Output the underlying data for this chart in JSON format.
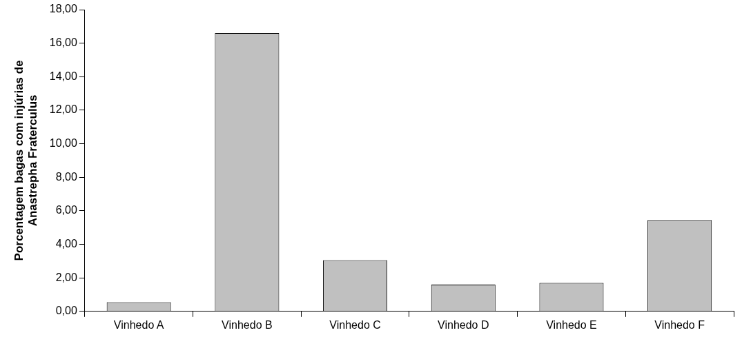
{
  "chart_data": {
    "type": "bar",
    "ylabel": "Porcentagem bagas com injúrias de\nAnastrepha Fraterculus",
    "categories": [
      "Vinhedo A",
      "Vinhedo B",
      "Vinhedo C",
      "Vinhedo D",
      "Vinhedo E",
      "Vinhedo F"
    ],
    "values": [
      0.55,
      16.6,
      3.05,
      1.6,
      1.7,
      5.45
    ],
    "color": "#c0c0c0",
    "ylim": [
      0,
      18
    ],
    "yticks": [
      {
        "value": 0,
        "label": "0,00"
      },
      {
        "value": 2,
        "label": "2,00"
      },
      {
        "value": 4,
        "label": "4,00"
      },
      {
        "value": 6,
        "label": "6,00"
      },
      {
        "value": 8,
        "label": "8,00"
      },
      {
        "value": 10,
        "label": "10,00"
      },
      {
        "value": 12,
        "label": "12,00"
      },
      {
        "value": 14,
        "label": "14,00"
      },
      {
        "value": 16,
        "label": "16,00"
      },
      {
        "value": 18,
        "label": "18,00"
      }
    ],
    "grid": false,
    "legend": false
  }
}
